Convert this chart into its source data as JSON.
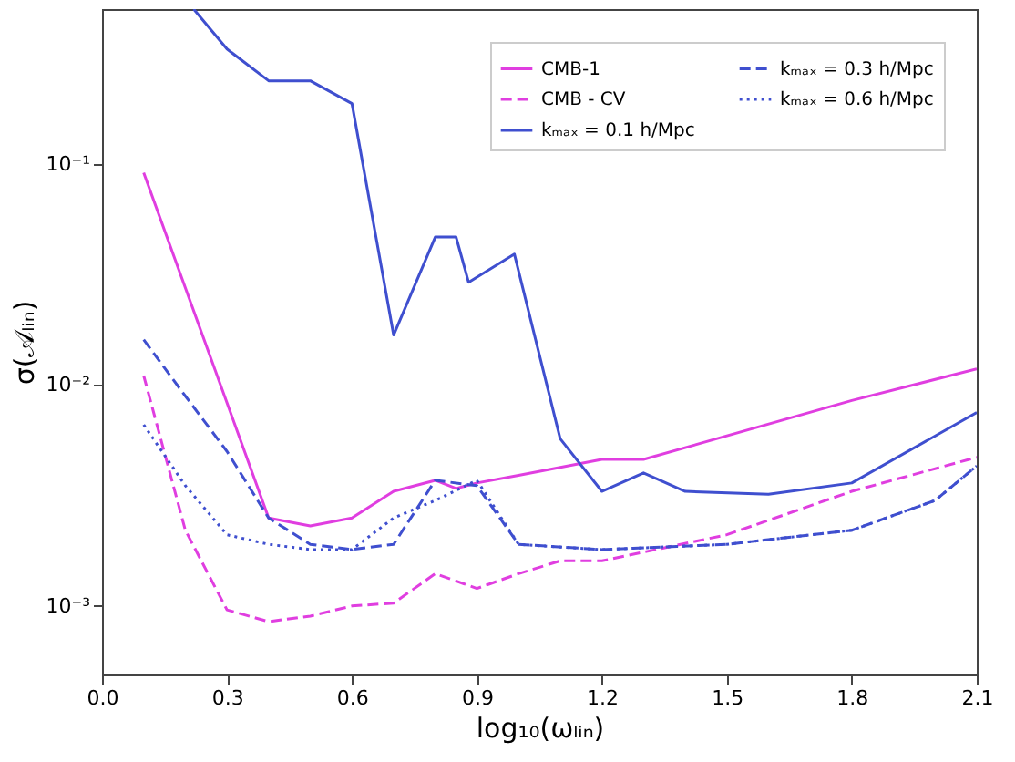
{
  "chart_data": {
    "type": "line",
    "xlabel": "log₁₀(ωₗᵢₙ)",
    "ylabel": "σ(𝒜ₗᵢₙ)",
    "log": "y",
    "grid": false,
    "legend": "top right",
    "marker": "none",
    "xlim": [
      0.0,
      2.1
    ],
    "xticks": [
      {
        "value": 0,
        "label": "0.0"
      },
      0.3,
      0.6,
      0.9,
      1.2,
      1.5,
      1.8,
      2.1
    ],
    "ylim": [
      0.00049,
      0.5
    ],
    "yticks": [
      {
        "value": 0.001,
        "label": "10⁻³"
      },
      {
        "value": 0.01,
        "label": "10⁻²"
      },
      {
        "value": 0.1,
        "label": "10⁻¹"
      }
    ],
    "series": [
      {
        "name": "CMB-1",
        "color": "#e03ee0",
        "line_style": "solid",
        "x": [
          0.1,
          0.4,
          0.5,
          0.6,
          0.7,
          0.8,
          0.85,
          0.9,
          1.0,
          1.2,
          1.3,
          1.8,
          2.1
        ],
        "values": [
          0.091,
          0.0025,
          0.0023,
          0.0025,
          0.0033,
          0.0037,
          0.0034,
          0.0036,
          0.0039,
          0.0046,
          0.0046,
          0.0085,
          0.0118
        ]
      },
      {
        "name": "CMB - CV",
        "color": "#e03ee0",
        "line_style": "dashed",
        "x": [
          0.1,
          0.2,
          0.3,
          0.4,
          0.5,
          0.6,
          0.7,
          0.8,
          0.9,
          1.0,
          1.1,
          1.2,
          1.5,
          1.8,
          2.1
        ],
        "values": [
          0.011,
          0.0022,
          0.00096,
          0.00085,
          0.0009,
          0.001,
          0.00103,
          0.0014,
          0.0012,
          0.0014,
          0.0016,
          0.0016,
          0.0021,
          0.0033,
          0.0047
        ]
      },
      {
        "name": "kₘₐₓ = 0.1 h/Mpc",
        "color": "#3f4fcf",
        "line_style": "solid",
        "x": [
          0.22,
          0.3,
          0.4,
          0.5,
          0.6,
          0.7,
          0.8,
          0.85,
          0.88,
          0.99,
          1.1,
          1.2,
          1.3,
          1.4,
          1.6,
          1.8,
          2.1
        ],
        "values": [
          0.5,
          0.33,
          0.237,
          0.237,
          0.187,
          0.0168,
          0.0466,
          0.0466,
          0.0291,
          0.039,
          0.0057,
          0.0033,
          0.004,
          0.0033,
          0.0032,
          0.0036,
          0.0075
        ]
      },
      {
        "name": "kₘₐₓ = 0.3 h/Mpc",
        "color": "#3f4fcf",
        "line_style": "dashed",
        "x": [
          0.1,
          0.2,
          0.3,
          0.4,
          0.5,
          0.6,
          0.7,
          0.8,
          0.9,
          1.0,
          1.2,
          1.5,
          1.8,
          2.0,
          2.1
        ],
        "values": [
          0.016,
          0.0089,
          0.005,
          0.0025,
          0.0019,
          0.0018,
          0.0019,
          0.0037,
          0.0035,
          0.0019,
          0.0018,
          0.0019,
          0.0022,
          0.003,
          0.0043
        ]
      },
      {
        "name": "kₘₐₓ = 0.6 h/Mpc",
        "color": "#3f4fcf",
        "line_style": "dotted",
        "x": [
          0.1,
          0.2,
          0.3,
          0.4,
          0.5,
          0.6,
          0.7,
          0.8,
          0.9,
          1.0,
          1.2,
          1.5,
          1.8,
          2.0,
          2.1
        ],
        "values": [
          0.0066,
          0.0035,
          0.0021,
          0.0019,
          0.0018,
          0.0018,
          0.0025,
          0.003,
          0.0037,
          0.0019,
          0.0018,
          0.0019,
          0.0022,
          0.003,
          0.0043
        ]
      }
    ]
  }
}
